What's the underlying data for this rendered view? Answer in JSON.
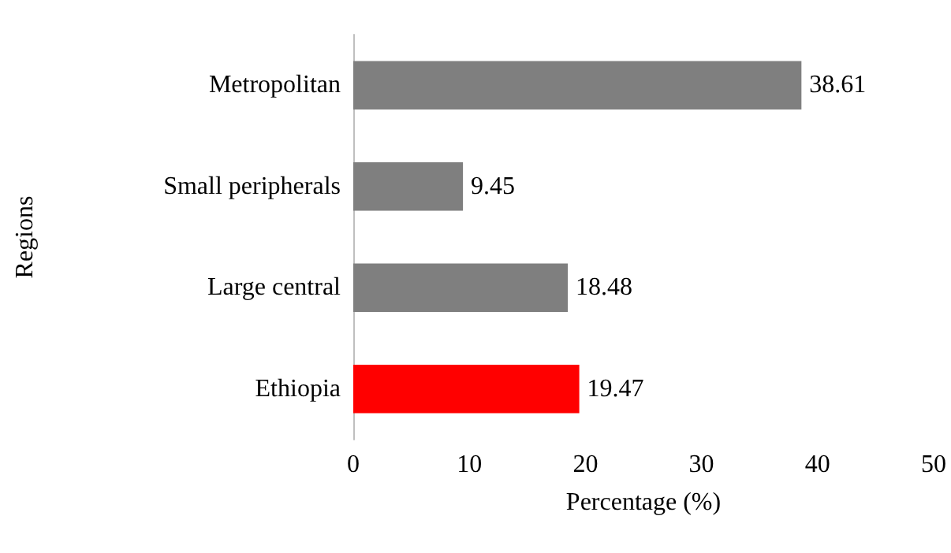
{
  "chart_data": {
    "type": "bar",
    "orientation": "horizontal",
    "xlabel": "Percentage (%)",
    "ylabel": "Regions",
    "categories": [
      "Metropolitan",
      "Small peripherals",
      "Large central",
      "Ethiopia"
    ],
    "values": [
      38.61,
      9.45,
      18.48,
      19.47
    ],
    "colors": [
      "#7f7f7f",
      "#7f7f7f",
      "#7f7f7f",
      "#ff0000"
    ],
    "xlim": [
      0,
      50
    ],
    "xticks": [
      0,
      10,
      20,
      30,
      40,
      50
    ],
    "data_labels": true
  }
}
